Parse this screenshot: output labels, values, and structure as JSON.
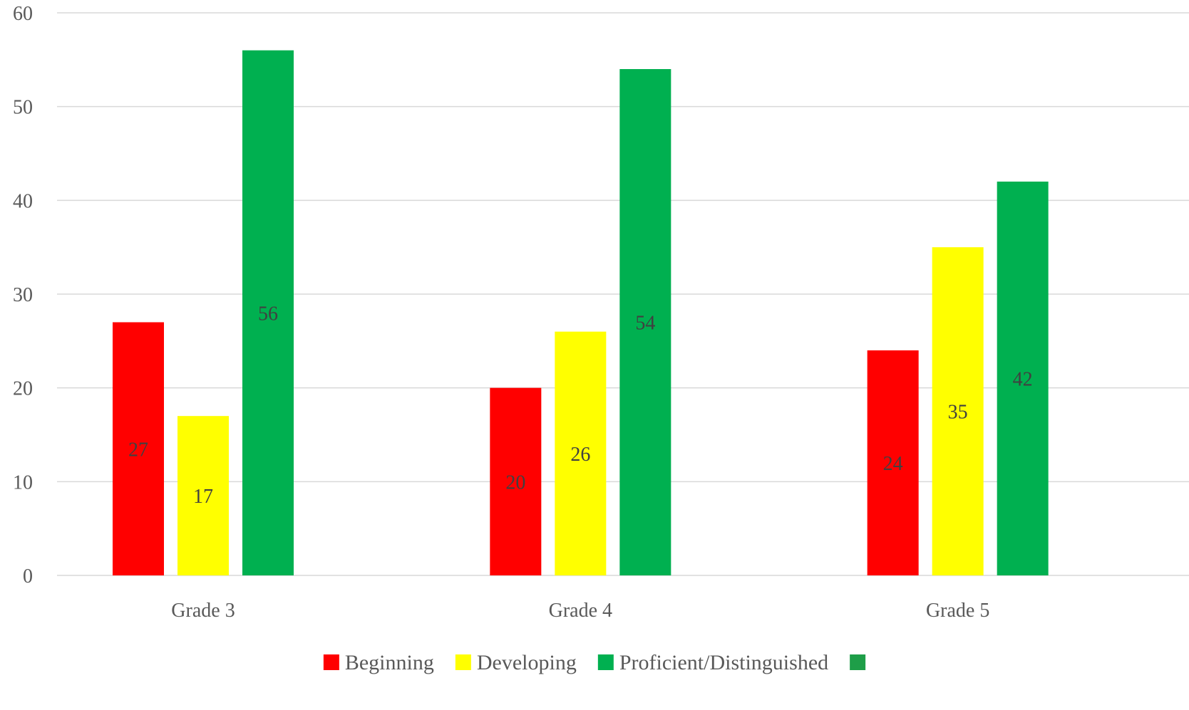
{
  "chart_data": {
    "type": "bar",
    "title": "",
    "xlabel": "",
    "ylabel": "",
    "categories": [
      "Grade 3",
      "Grade 4",
      "Grade 5"
    ],
    "series": [
      {
        "name": "Beginning",
        "color": "#ff0000",
        "values": [
          27,
          20,
          24
        ]
      },
      {
        "name": "Developing",
        "color": "#ffff00",
        "values": [
          17,
          26,
          35
        ]
      },
      {
        "name": "Proficient/Distinguished",
        "color": "#00b050",
        "values": [
          56,
          54,
          42
        ]
      }
    ],
    "ylim": [
      0,
      60
    ],
    "yticks": [
      0,
      10,
      20,
      30,
      40,
      50,
      60
    ],
    "grid": true,
    "data_labels": true,
    "legend": {
      "position": "bottom",
      "entries": [
        {
          "label": "Beginning",
          "color": "#ff0000"
        },
        {
          "label": "Developing",
          "color": "#ffff00"
        },
        {
          "label": "Proficient/Distinguished",
          "color": "#00b050"
        },
        {
          "label": "",
          "color": "#1e9e48"
        }
      ]
    }
  }
}
